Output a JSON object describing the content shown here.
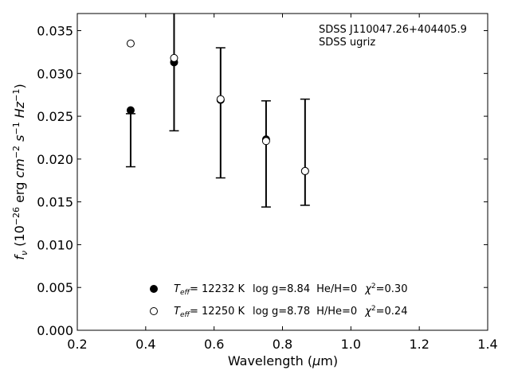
{
  "chart_data": {
    "type": "scatter",
    "xlabel": "Wavelength (μm)",
    "ylabel": "f_ν (10^-26 erg cm^-2 s^-1 Hz^-1)",
    "xlim": [
      0.2,
      1.4
    ],
    "ylim": [
      0.0,
      0.037
    ],
    "xticks": [
      0.2,
      0.4,
      0.6,
      0.8,
      1.0,
      1.2,
      1.4
    ],
    "xtick_labels": [
      "0.2",
      "0.4",
      "0.6",
      "0.8",
      "1.0",
      "1.2",
      "1.4"
    ],
    "yticks": [
      0.0,
      0.005,
      0.01,
      0.015,
      0.02,
      0.025,
      0.03,
      0.035
    ],
    "ytick_labels": [
      "0.000",
      "0.005",
      "0.010",
      "0.015",
      "0.020",
      "0.025",
      "0.030",
      "0.035"
    ],
    "annotation": {
      "line1": "SDSS J110047.26+404405.9",
      "line2": "SDSS ugriz"
    },
    "observed": {
      "x": [
        0.356,
        0.483,
        0.619,
        0.752,
        0.866
      ],
      "y": [
        0.0222,
        0.0319,
        0.0254,
        0.0206,
        0.0208
      ],
      "yerr": [
        0.0031,
        0.0086,
        0.0076,
        0.0062,
        0.0062
      ]
    },
    "series": [
      {
        "name": "T_eff= 12232 K log g=8.84 He/H=0 χ²=0.30",
        "marker": "filled-circle",
        "x": [
          0.356,
          0.483,
          0.619,
          0.752,
          0.866
        ],
        "y": [
          0.0257,
          0.0313,
          0.0269,
          0.0223,
          0.0186
        ]
      },
      {
        "name": "T_eff= 12250 K log g=8.78 H/He=0 χ²=0.24",
        "marker": "open-circle",
        "x": [
          0.356,
          0.483,
          0.619,
          0.752,
          0.866
        ],
        "y": [
          0.0335,
          0.0318,
          0.027,
          0.0221,
          0.0186
        ]
      }
    ],
    "legend": {
      "placement": "bottom-center",
      "entries": [
        {
          "teff": "= 12232 K",
          "logg": "log g=8.84",
          "comp": "He/H=0",
          "chi": "=0.30"
        },
        {
          "teff": "= 12250 K",
          "logg": "log g=8.78",
          "comp": "H/He=0",
          "chi": "=0.24"
        }
      ]
    },
    "grid": false
  }
}
